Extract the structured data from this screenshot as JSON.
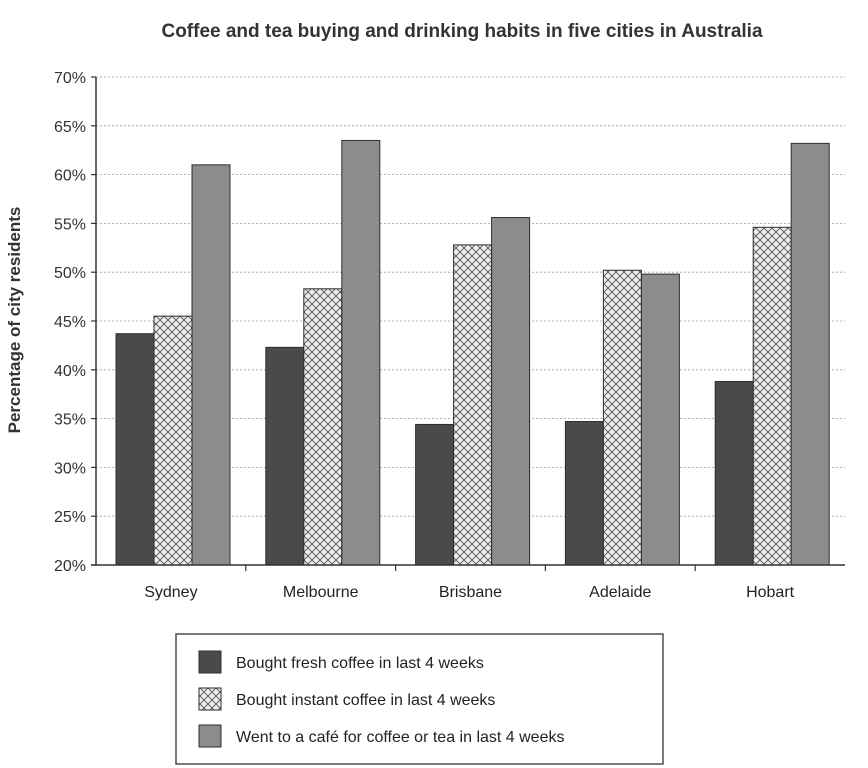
{
  "chart_data": {
    "type": "bar",
    "title": "Coffee and tea buying and drinking habits in five cities in Australia",
    "xlabel": "",
    "ylabel": "Percentage of city residents",
    "ylim": [
      20,
      70
    ],
    "ytick_step": 5,
    "ytick_suffix": "%",
    "grid": true,
    "legend_position": "bottom",
    "categories": [
      "Sydney",
      "Melbourne",
      "Brisbane",
      "Adelaide",
      "Hobart"
    ],
    "series": [
      {
        "name": "Bought fresh coffee in last 4 weeks",
        "values": [
          43.7,
          42.3,
          34.4,
          34.7,
          38.8
        ],
        "color": "#4a4a4a",
        "pattern": "solid"
      },
      {
        "name": "Bought instant coffee in last 4 weeks",
        "values": [
          45.5,
          48.3,
          52.8,
          50.2,
          54.6
        ],
        "color": "#e6e6e6",
        "pattern": "crosshatch"
      },
      {
        "name": "Went to a café for coffee or tea in last 4 weeks",
        "values": [
          61.0,
          63.5,
          55.6,
          49.8,
          63.2
        ],
        "color": "#8c8c8c",
        "pattern": "solid"
      }
    ]
  }
}
